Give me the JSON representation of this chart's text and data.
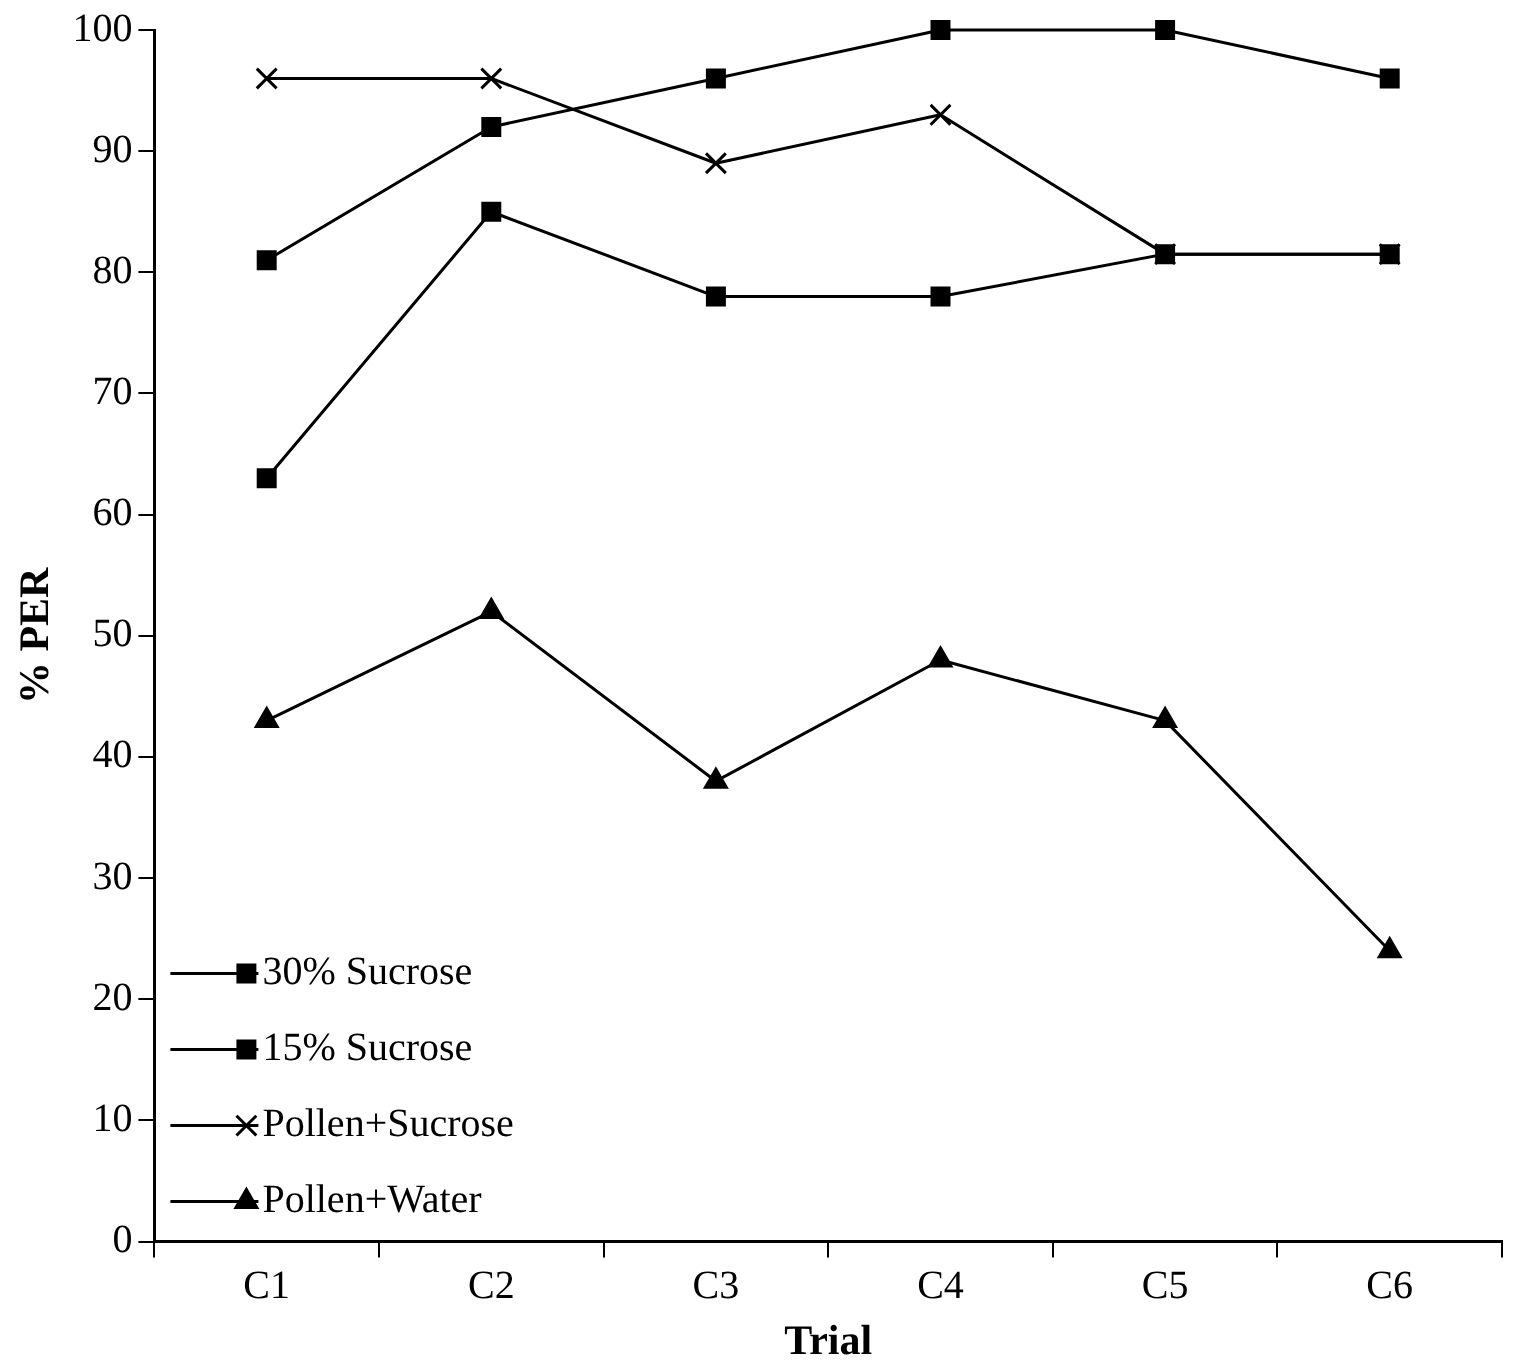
{
  "chart_data": {
    "type": "line",
    "xlabel": "Trial",
    "ylabel": "% PER",
    "categories": [
      "C1",
      "C2",
      "C3",
      "C4",
      "C5",
      "C6"
    ],
    "series": [
      {
        "name": "30% Sucrose",
        "color": "#000000",
        "marker": "square",
        "values": [
          81,
          92,
          96,
          100,
          100,
          96
        ]
      },
      {
        "name": "15% Sucrose",
        "color": "#000000",
        "marker": "square",
        "values": [
          63,
          85,
          78,
          78,
          81.5,
          81.5
        ]
      },
      {
        "name": "Pollen+Sucrose",
        "color": "#000000",
        "marker": "cross",
        "values": [
          96,
          96,
          89,
          93,
          81.5,
          81.5
        ]
      },
      {
        "name": "Pollen+Water",
        "color": "#000000",
        "marker": "triangle",
        "values": [
          43,
          52,
          38,
          48,
          43,
          24
        ]
      }
    ],
    "ylim": [
      0,
      100
    ],
    "yticks": [
      0,
      10,
      20,
      30,
      40,
      50,
      60,
      70,
      80,
      90,
      100
    ],
    "grid": false,
    "legend": "bottom left"
  }
}
